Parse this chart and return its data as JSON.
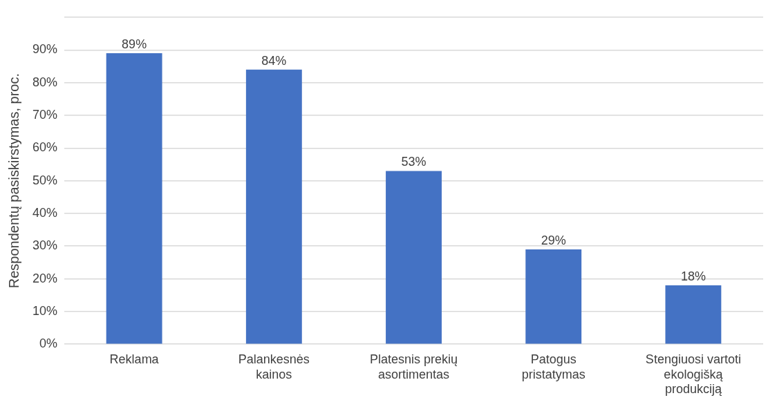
{
  "chart_data": {
    "type": "bar",
    "ylabel": "Respondentų pasiskirstymas, proc.",
    "categories": [
      "Reklama",
      "Palankesnės kainos",
      "Platesnis prekių asortimentas",
      "Patogus pristatymas",
      "Stengiuosi vartoti ekologišką produkciją"
    ],
    "values": [
      89,
      84,
      53,
      29,
      18
    ],
    "value_labels": [
      "89%",
      "84%",
      "53%",
      "29%",
      "18%"
    ],
    "color": "#4472c4",
    "ylim": [
      0,
      100
    ],
    "yticks": [
      {
        "value": 0,
        "label": "0%"
      },
      {
        "value": 10,
        "label": "10%"
      },
      {
        "value": 20,
        "label": "20%"
      },
      {
        "value": 30,
        "label": "30%"
      },
      {
        "value": 40,
        "label": "40%"
      },
      {
        "value": 50,
        "label": "50%"
      },
      {
        "value": 60,
        "label": "60%"
      },
      {
        "value": 70,
        "label": "70%"
      },
      {
        "value": 80,
        "label": "80%"
      },
      {
        "value": 90,
        "label": "90%"
      },
      {
        "value": 100,
        "label": null
      }
    ],
    "grid": "y",
    "legend": false
  }
}
